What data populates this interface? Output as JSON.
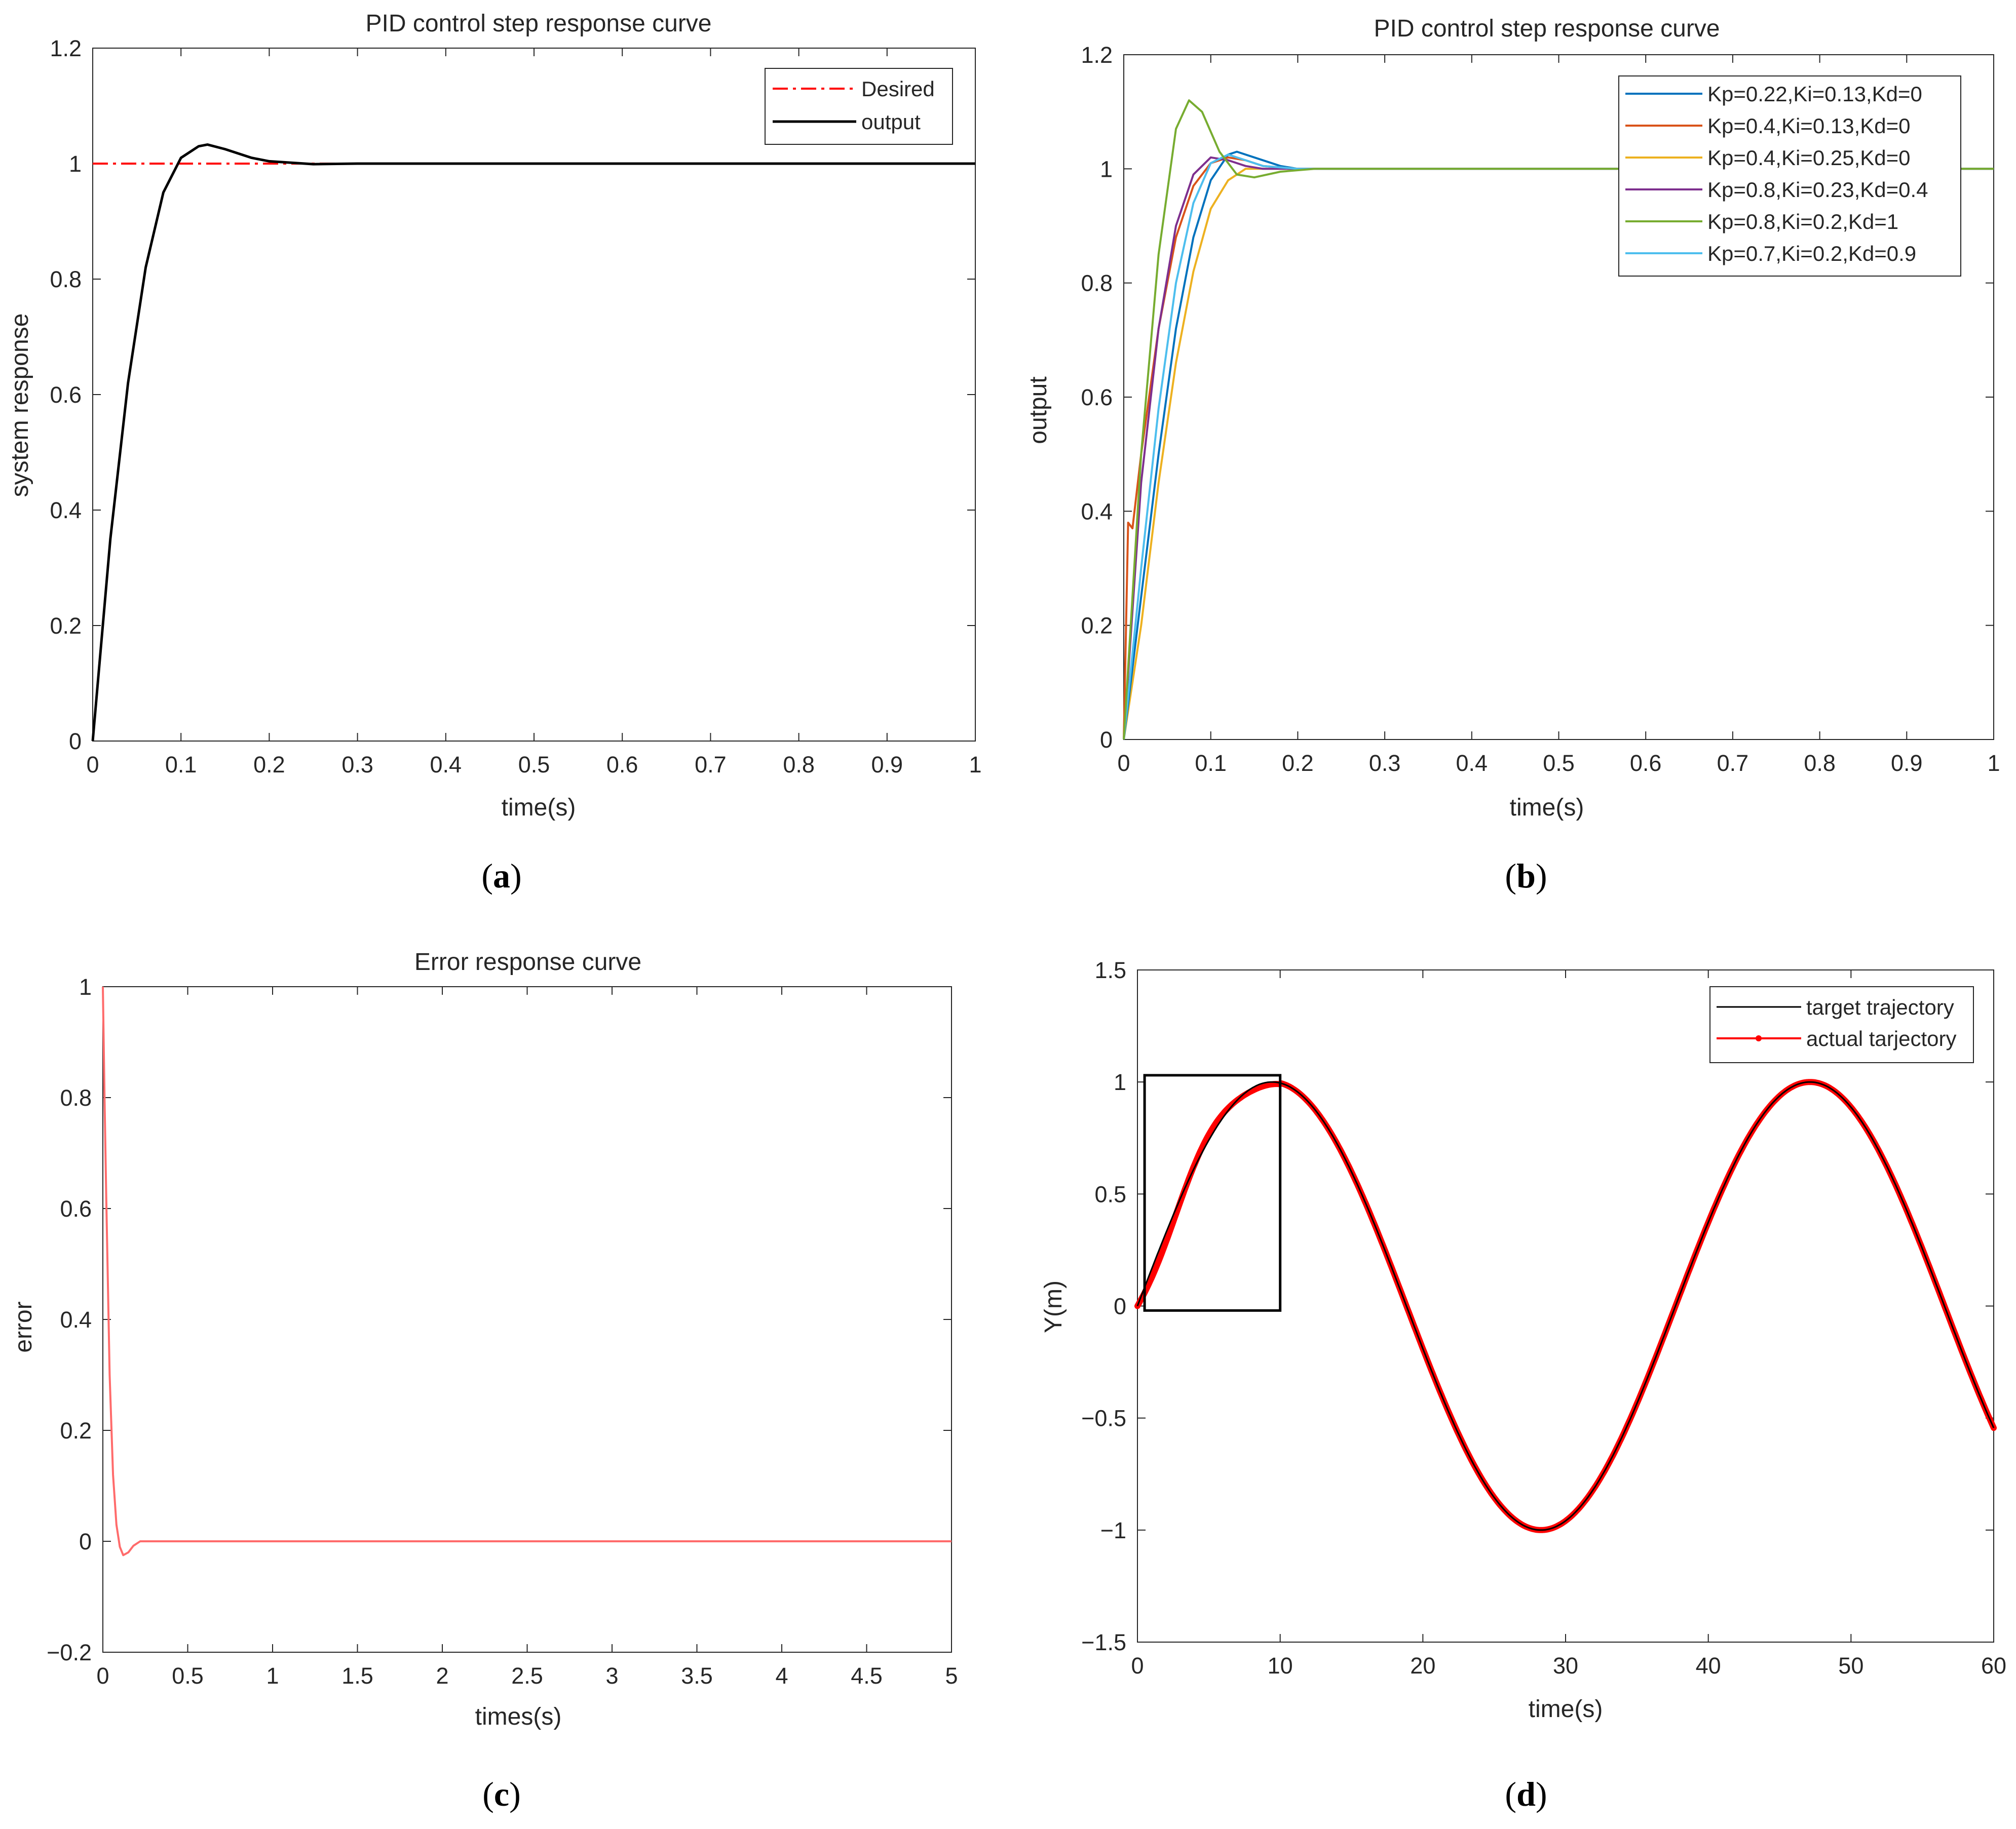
{
  "captions": [
    "a",
    "b",
    "c",
    "d"
  ],
  "colors": {
    "desired": "#ff0000",
    "output": "#000000",
    "error": "#ff6b6b",
    "target": "#000000",
    "actual": "#ff0000",
    "axis": "#262626",
    "series": [
      "#0072bd",
      "#d95319",
      "#edb120",
      "#7e2f8e",
      "#77ac30",
      "#4dbeee"
    ]
  },
  "chart_data": [
    {
      "id": "a",
      "type": "line",
      "title": "PID control step response curve",
      "xlabel": "time(s)",
      "ylabel": "system response",
      "xlim": [
        0,
        1
      ],
      "ylim": [
        0,
        1.2
      ],
      "xticks": [
        0,
        0.1,
        0.2,
        0.3,
        0.4,
        0.5,
        0.6,
        0.7,
        0.8,
        0.9,
        1
      ],
      "yticks": [
        0,
        0.2,
        0.4,
        0.6,
        0.8,
        1,
        1.2
      ],
      "legend": "top-right",
      "series": [
        {
          "name": "Desired",
          "style": "dashdot",
          "x": [
            0,
            1
          ],
          "y": [
            1,
            1
          ]
        },
        {
          "name": "output",
          "style": "solid",
          "x": [
            0,
            0.02,
            0.04,
            0.06,
            0.08,
            0.1,
            0.12,
            0.13,
            0.15,
            0.18,
            0.2,
            0.25,
            0.3,
            0.4,
            0.6,
            0.8,
            1
          ],
          "y": [
            0,
            0.35,
            0.62,
            0.82,
            0.95,
            1.01,
            1.03,
            1.033,
            1.025,
            1.01,
            1.004,
            0.999,
            1.0,
            1.0,
            1.0,
            1.0,
            1.0
          ]
        }
      ]
    },
    {
      "id": "b",
      "type": "line",
      "title": "PID control step response curve",
      "xlabel": "time(s)",
      "ylabel": "output",
      "xlim": [
        0,
        1
      ],
      "ylim": [
        0,
        1.2
      ],
      "xticks": [
        0,
        0.1,
        0.2,
        0.3,
        0.4,
        0.5,
        0.6,
        0.7,
        0.8,
        0.9,
        1
      ],
      "yticks": [
        0,
        0.2,
        0.4,
        0.6,
        0.8,
        1,
        1.2
      ],
      "legend": "top-right",
      "series": [
        {
          "name": "Kp=0.22,Ki=0.13,Kd=0",
          "x": [
            0,
            0.02,
            0.04,
            0.06,
            0.08,
            0.1,
            0.12,
            0.13,
            0.15,
            0.18,
            0.2,
            0.25,
            0.3,
            1
          ],
          "y": [
            0,
            0.25,
            0.5,
            0.72,
            0.88,
            0.98,
            1.025,
            1.03,
            1.02,
            1.005,
            1.0,
            1.0,
            1.0,
            1.0
          ]
        },
        {
          "name": "Kp=0.4,Ki=0.13,Kd=0",
          "x": [
            0,
            0.005,
            0.01,
            0.02,
            0.04,
            0.06,
            0.08,
            0.1,
            0.12,
            0.14,
            0.16,
            0.2,
            0.25,
            1
          ],
          "y": [
            0,
            0.38,
            0.37,
            0.5,
            0.72,
            0.88,
            0.97,
            1.01,
            1.02,
            1.015,
            1.005,
            1.0,
            1.0,
            1.0
          ]
        },
        {
          "name": "Kp=0.4,Ki=0.25,Kd=0",
          "x": [
            0,
            0.02,
            0.04,
            0.06,
            0.08,
            0.1,
            0.12,
            0.14,
            0.16,
            0.2,
            0.25,
            1
          ],
          "y": [
            0,
            0.2,
            0.45,
            0.66,
            0.82,
            0.93,
            0.98,
            1.0,
            1.0,
            1.0,
            1.0,
            1.0
          ]
        },
        {
          "name": "Kp=0.8,Ki=0.23,Kd=0.4",
          "x": [
            0,
            0.02,
            0.04,
            0.06,
            0.08,
            0.1,
            0.12,
            0.14,
            0.16,
            0.2,
            0.25,
            1
          ],
          "y": [
            0,
            0.45,
            0.72,
            0.9,
            0.99,
            1.02,
            1.015,
            1.005,
            1.0,
            1.0,
            1.0,
            1.0
          ]
        },
        {
          "name": "Kp=0.8,Ki=0.2,Kd=1",
          "x": [
            0,
            0.02,
            0.04,
            0.06,
            0.075,
            0.09,
            0.11,
            0.13,
            0.15,
            0.18,
            0.22,
            0.3,
            1
          ],
          "y": [
            0,
            0.5,
            0.85,
            1.07,
            1.12,
            1.1,
            1.03,
            0.99,
            0.985,
            0.995,
            1.0,
            1.0,
            1.0
          ]
        },
        {
          "name": "Kp=0.7,Ki=0.2,Kd=0.9",
          "x": [
            0,
            0.02,
            0.04,
            0.06,
            0.08,
            0.1,
            0.12,
            0.14,
            0.16,
            0.2,
            0.25,
            1
          ],
          "y": [
            0,
            0.3,
            0.58,
            0.8,
            0.94,
            1.01,
            1.025,
            1.015,
            1.005,
            1.0,
            1.0,
            1.0
          ]
        }
      ]
    },
    {
      "id": "c",
      "type": "line",
      "title": "Error response curve",
      "xlabel": "times(s)",
      "ylabel": "error",
      "xlim": [
        0,
        5
      ],
      "ylim": [
        -0.2,
        1
      ],
      "xticks": [
        0,
        0.5,
        1,
        1.5,
        2,
        2.5,
        3,
        3.5,
        4,
        4.5,
        5
      ],
      "yticks": [
        -0.2,
        0,
        0.2,
        0.4,
        0.6,
        0.8,
        1
      ],
      "series": [
        {
          "name": "error",
          "x": [
            0,
            0.01,
            0.02,
            0.04,
            0.06,
            0.08,
            0.1,
            0.12,
            0.15,
            0.18,
            0.22,
            0.3,
            0.5,
            5
          ],
          "y": [
            1,
            0.8,
            0.62,
            0.3,
            0.12,
            0.03,
            -0.01,
            -0.025,
            -0.02,
            -0.008,
            0.0,
            0.0,
            0.0,
            0.0
          ]
        }
      ]
    },
    {
      "id": "d",
      "type": "line",
      "title": "",
      "xlabel": "time(s)",
      "ylabel": "Y(m)",
      "xlim": [
        0,
        60
      ],
      "ylim": [
        -1.5,
        1.5
      ],
      "xticks": [
        0,
        10,
        20,
        30,
        40,
        50,
        60
      ],
      "yticks": [
        -1.5,
        -1,
        -0.5,
        0,
        0.5,
        1,
        1.5
      ],
      "legend": "top-right",
      "sine": {
        "amplitude": 1,
        "period": 37.7
      },
      "zoom_box": {
        "x": [
          0.5,
          10
        ],
        "y": [
          -0.02,
          1.03
        ]
      },
      "series": [
        {
          "name": "target trajectory",
          "style": "solid"
        },
        {
          "name": "actual tarjectory",
          "style": "solid-dot"
        }
      ]
    }
  ]
}
